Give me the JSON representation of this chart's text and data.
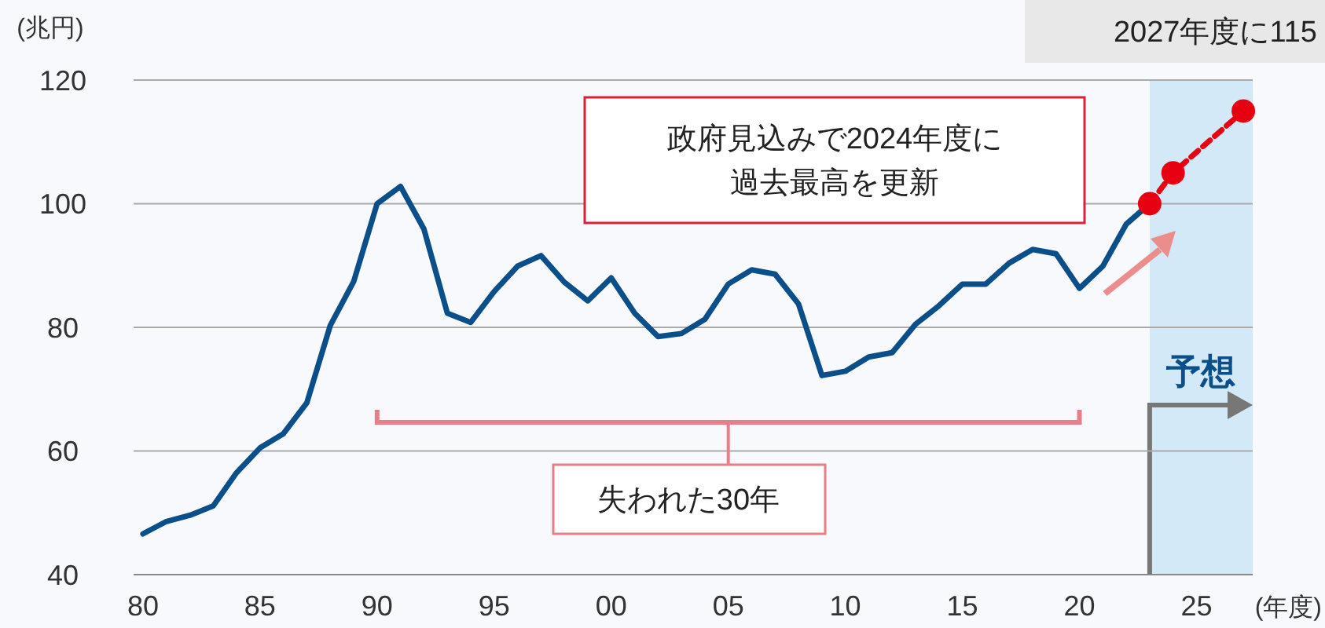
{
  "chart_data": {
    "type": "line",
    "xlabel": "(年度)",
    "ylabel": "(兆円)",
    "xlim": [
      1979.6,
      2027.4
    ],
    "ylim": [
      40,
      120
    ],
    "xticks": [
      {
        "value": 1980,
        "label": "80"
      },
      {
        "value": 1985,
        "label": "85"
      },
      {
        "value": 1990,
        "label": "90"
      },
      {
        "value": 1995,
        "label": "95"
      },
      {
        "value": 2000,
        "label": "00"
      },
      {
        "value": 2005,
        "label": "05"
      },
      {
        "value": 2010,
        "label": "10"
      },
      {
        "value": 2015,
        "label": "15"
      },
      {
        "value": 2020,
        "label": "20"
      },
      {
        "value": 2025,
        "label": "25"
      }
    ],
    "yticks": [
      40,
      60,
      80,
      100,
      120
    ],
    "grid": "y",
    "series": [
      {
        "color": "#0b4f8a",
        "marker": "none",
        "line_style": "solid",
        "x": [
          1980,
          1981,
          1982,
          1983,
          1984,
          1985,
          1986,
          1987,
          1988,
          1989,
          1990,
          1991,
          1992,
          1993,
          1994,
          1995,
          1996,
          1997,
          1998,
          1999,
          2000,
          2001,
          2002,
          2003,
          2004,
          2005,
          2006,
          2007,
          2008,
          2009,
          2010,
          2011,
          2012,
          2013,
          2014,
          2015,
          2016,
          2017,
          2018,
          2019,
          2020,
          2021,
          2022,
          2023
        ],
        "values": [
          46.6,
          48.6,
          49.6,
          51.1,
          56.5,
          60.5,
          62.8,
          67.8,
          80.3,
          87.4,
          100,
          102.8,
          95.9,
          82.3,
          80.8,
          85.8,
          89.9,
          91.6,
          87.3,
          84.3,
          88,
          82.3,
          78.5,
          79,
          81.3,
          87,
          89.3,
          88.6,
          83.8,
          72.2,
          72.9,
          75.2,
          75.9,
          80.5,
          83.5,
          87,
          87,
          90.4,
          92.6,
          91.9,
          86.3,
          89.9,
          96.7,
          100
        ]
      },
      {
        "color": "#e60012",
        "marker": "circle",
        "line_style": "dashed",
        "x": [
          2023,
          2024,
          2027
        ],
        "values": [
          100,
          105,
          115
        ]
      }
    ],
    "bands": [
      {
        "axis": "x",
        "from": 2023,
        "to": 2027.4,
        "label": "予想",
        "color": "#d4e9f7"
      }
    ],
    "annotations": [
      "2027年度に115",
      "政府見込みで2024年度に過去最高を更新",
      "失われた30年"
    ]
  }
}
